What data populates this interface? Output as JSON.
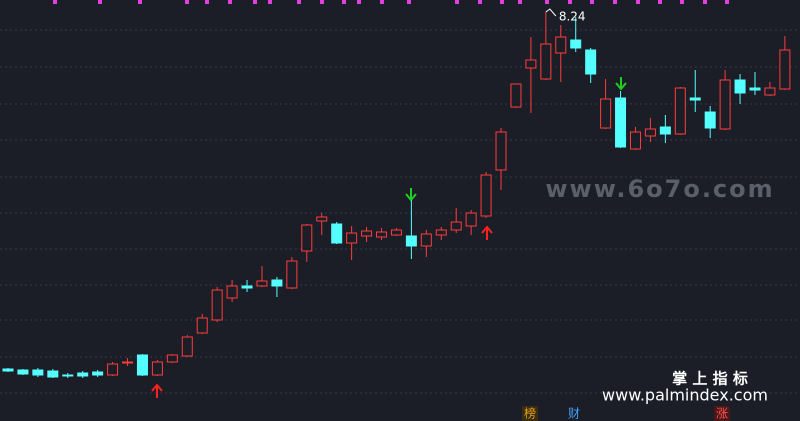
{
  "chart_data": {
    "type": "candlestick",
    "open": [
      4.67,
      4.66,
      4.66,
      4.65,
      4.61,
      4.63,
      4.64,
      4.61,
      4.73,
      4.81,
      4.61,
      4.74,
      4.8,
      5.03,
      5.16,
      5.38,
      5.5,
      5.5,
      5.56,
      5.48,
      5.85,
      6.15,
      6.12,
      5.93,
      6.0,
      5.99,
      6.01,
      6.0,
      5.9,
      6.01,
      6.06,
      6.1,
      6.2,
      6.66,
      7.29,
      7.68,
      7.57,
      7.83,
      7.96,
      7.86,
      7.08,
      7.38,
      6.87,
      7.0,
      7.09,
      7.02,
      7.38,
      7.24,
      7.07,
      7.56,
      7.48,
      7.41,
      7.47
    ],
    "high": [
      4.68,
      4.67,
      4.68,
      4.67,
      4.63,
      4.65,
      4.66,
      4.74,
      4.78,
      4.82,
      4.76,
      4.82,
      5.01,
      5.22,
      5.49,
      5.56,
      5.56,
      5.7,
      5.59,
      5.79,
      6.12,
      6.23,
      6.14,
      6.1,
      6.09,
      6.08,
      6.08,
      6.36,
      6.06,
      6.09,
      6.28,
      6.26,
      6.64,
      7.08,
      7.52,
      7.99,
      8.24,
      8.11,
      8.19,
      7.88,
      7.57,
      7.45,
      7.09,
      7.18,
      7.21,
      7.49,
      7.66,
      7.3,
      7.66,
      7.62,
      7.64,
      7.54,
      8.0
    ],
    "low": [
      4.64,
      4.61,
      4.59,
      4.58,
      4.58,
      4.58,
      4.59,
      4.6,
      4.7,
      4.6,
      4.6,
      4.73,
      4.79,
      5.02,
      5.14,
      5.34,
      5.44,
      5.49,
      5.39,
      5.47,
      5.74,
      6.01,
      5.92,
      5.76,
      5.94,
      5.96,
      6.0,
      5.77,
      5.79,
      5.96,
      6.03,
      6.01,
      6.18,
      6.46,
      7.28,
      7.23,
      7.56,
      7.54,
      7.84,
      7.53,
      7.07,
      6.88,
      6.86,
      6.94,
      6.93,
      7.01,
      7.24,
      6.98,
      7.06,
      7.32,
      7.41,
      7.4,
      7.46
    ],
    "close": [
      4.65,
      4.62,
      4.61,
      4.59,
      4.6,
      4.6,
      4.61,
      4.72,
      4.74,
      4.61,
      4.74,
      4.81,
      4.99,
      5.18,
      5.46,
      5.5,
      5.48,
      5.55,
      5.5,
      5.75,
      6.11,
      6.19,
      5.93,
      6.03,
      6.05,
      6.04,
      6.06,
      5.9,
      6.02,
      6.06,
      6.14,
      6.23,
      6.61,
      7.04,
      7.52,
      7.76,
      7.92,
      7.99,
      7.88,
      7.62,
      7.37,
      6.89,
      7.04,
      7.07,
      7.02,
      7.48,
      7.36,
      7.08,
      7.56,
      7.43,
      7.46,
      7.48,
      7.86
    ],
    "up_color": "#ff3c3c",
    "down_color": "#54ffff",
    "ylim": [
      4.15,
      8.36
    ]
  },
  "watermark": "www.6o7o.com",
  "brand": {
    "name": "掌 上 指 标",
    "url": "www.palmindex.com"
  },
  "badges": [
    "榜",
    "财",
    "涨"
  ]
}
